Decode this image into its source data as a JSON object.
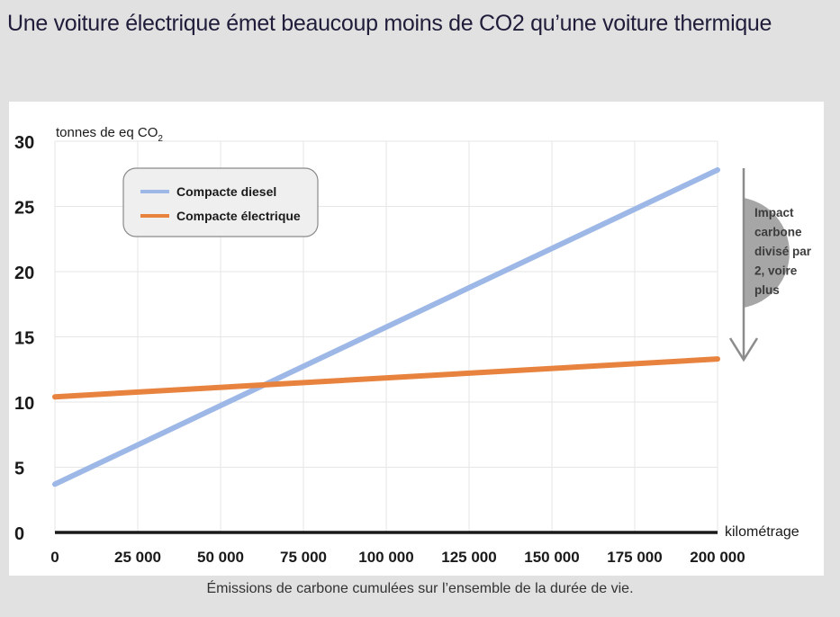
{
  "page": {
    "title": "Une voiture électrique émet beaucoup moins de CO2 qu’une voiture thermique",
    "caption": "Émissions de carbone cumulées sur l’ensemble de la durée de vie."
  },
  "chart_data": {
    "type": "line",
    "title": "",
    "ylabel": "tonnes de eq CO",
    "ylabel_subscript": "2",
    "xlabel": "kilométrage",
    "xlim": [
      0,
      200000
    ],
    "ylim": [
      0,
      30
    ],
    "x_ticks": [
      0,
      25000,
      50000,
      75000,
      100000,
      125000,
      150000,
      175000,
      200000
    ],
    "x_tick_labels": [
      "0",
      "25 000",
      "50 000",
      "75 000",
      "100 000",
      "125 000",
      "150 000",
      "175 000",
      "200 000"
    ],
    "y_ticks": [
      0,
      5,
      10,
      15,
      20,
      25,
      30
    ],
    "y_tick_labels": [
      "0",
      "5",
      "10",
      "15",
      "20",
      "25",
      "30"
    ],
    "grid": true,
    "legend_position": "top-left",
    "series": [
      {
        "name": "Compacte diesel",
        "color": "#9db7e6",
        "x": [
          0,
          200000
        ],
        "values": [
          3.7,
          27.8
        ]
      },
      {
        "name": "Compacte électrique",
        "color": "#e8833f",
        "x": [
          0,
          200000
        ],
        "values": [
          10.4,
          13.3
        ]
      }
    ],
    "annotation": {
      "text_lines": [
        "Impact",
        "carbone",
        "divisé par",
        "2, voire",
        "plus"
      ],
      "arrow_color": "#8c8c8c",
      "bubble_color": "#a6a6a6"
    }
  }
}
